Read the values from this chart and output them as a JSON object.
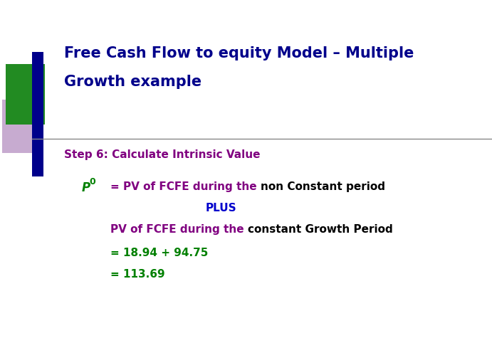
{
  "title_line1": "Free Cash Flow to equity Model – Multiple",
  "title_line2": "Growth example",
  "title_color": "#00008B",
  "title_fontsize": 15,
  "step_text": "Step 6: Calculate Intrinsic Value",
  "step_color": "#800080",
  "step_fontsize": 11,
  "background_color": "#ffffff",
  "decoration_green": "#228B22",
  "decoration_purple": "#9966AA",
  "decoration_navy": "#00008B",
  "p0_color": "#008000",
  "purple_text": "#800080",
  "black_text": "#000000",
  "blue_text": "#0000CC",
  "green_text": "#008000",
  "body_fontsize": 11
}
